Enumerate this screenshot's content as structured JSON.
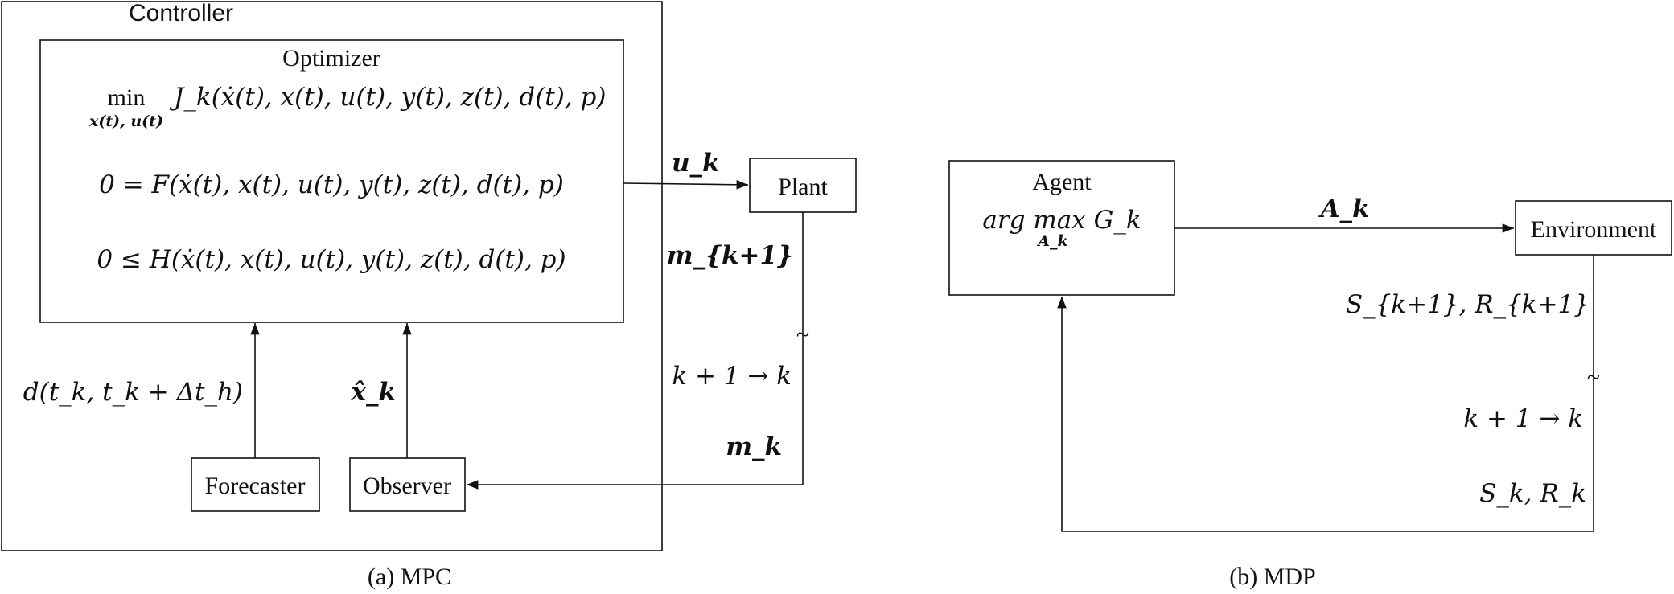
{
  "mpc": {
    "controller_label": "Controller",
    "optimizer_label": "Optimizer",
    "objective_min": "min",
    "objective_sub": "x(t), u(t)",
    "objective": "J_k(ẋ(t), x(t), u(t), y(t), z(t), d(t), p)",
    "equality": "0 = F(ẋ(t), x(t), u(t), y(t), z(t), d(t), p)",
    "inequality": "0 ≤ H(ẋ(t), x(t), u(t), y(t), z(t), d(t), p)",
    "forecaster_label": "Forecaster",
    "observer_label": "Observer",
    "plant_label": "Plant",
    "forecast_signal": "d(t_k, t_k + Δt_h)",
    "state_estimate_signal": "x̂_k",
    "control_signal": "u_k",
    "measurement_next": "m_{k+1}",
    "time_shift": "k + 1 → k",
    "measurement_current": "m_k",
    "delay_symbol": "~",
    "caption": "(a) MPC"
  },
  "mdp": {
    "agent_label": "Agent",
    "agent_objective": "arg max G_k",
    "agent_objective_sub": "A_k",
    "environment_label": "Environment",
    "action_signal": "A_k",
    "next_state_reward": "S_{k+1}, R_{k+1}",
    "time_shift": "k + 1 → k",
    "current_state_reward": "S_k, R_k",
    "delay_symbol": "~",
    "caption": "(b) MDP"
  }
}
